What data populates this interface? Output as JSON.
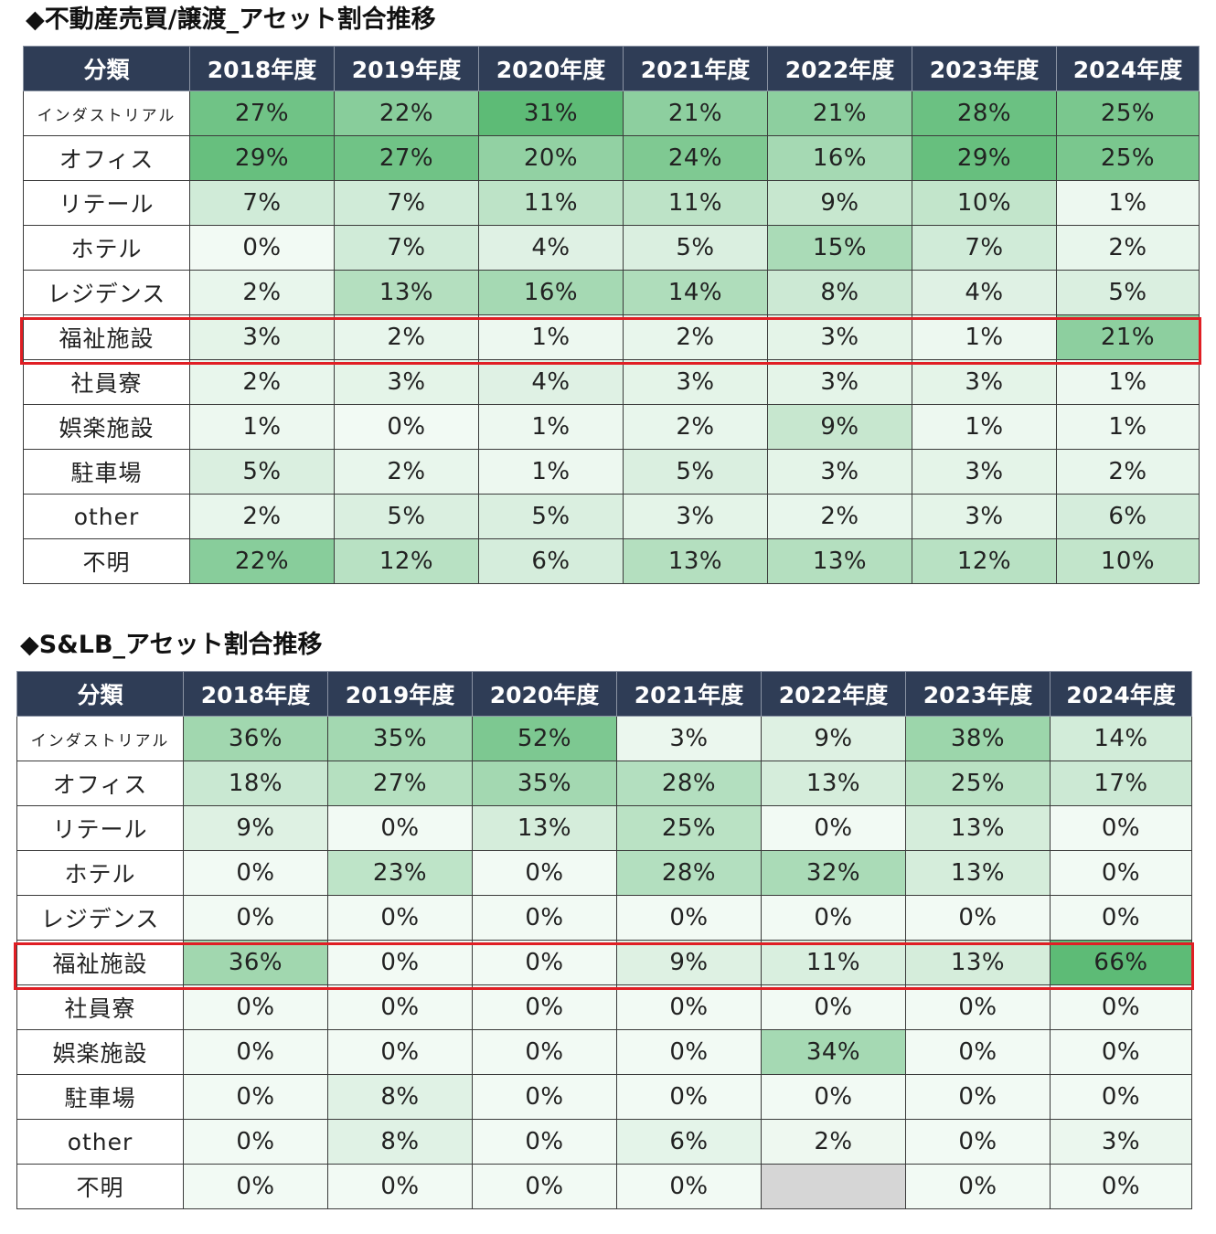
{
  "colors": {
    "header_bg": "#2f3d56",
    "header_text": "#ffffff",
    "highlight_border": "#e01e24",
    "heat_max": "#5dbb76",
    "heat_min": "#ffffff",
    "missing_cell": "#d6d6d6"
  },
  "tables": [
    {
      "title": "◆不動産売買/譲渡_アセット割合推移",
      "headers": [
        "分類",
        "2018年度",
        "2019年度",
        "2020年度",
        "2021年度",
        "2022年度",
        "2023年度",
        "2024年度"
      ],
      "highlight_row": "福祉施設",
      "rows": [
        {
          "label": "インダストリアル",
          "values": [
            "27%",
            "22%",
            "31%",
            "21%",
            "21%",
            "28%",
            "25%"
          ]
        },
        {
          "label": "オフィス",
          "values": [
            "29%",
            "27%",
            "20%",
            "24%",
            "16%",
            "29%",
            "25%"
          ]
        },
        {
          "label": "リテール",
          "values": [
            "7%",
            "7%",
            "11%",
            "11%",
            "9%",
            "10%",
            "1%"
          ]
        },
        {
          "label": "ホテル",
          "values": [
            "0%",
            "7%",
            "4%",
            "5%",
            "15%",
            "7%",
            "2%"
          ]
        },
        {
          "label": "レジデンス",
          "values": [
            "2%",
            "13%",
            "16%",
            "14%",
            "8%",
            "4%",
            "5%"
          ]
        },
        {
          "label": "福祉施設",
          "values": [
            "3%",
            "2%",
            "1%",
            "2%",
            "3%",
            "1%",
            "21%"
          ]
        },
        {
          "label": "社員寮",
          "values": [
            "2%",
            "3%",
            "4%",
            "3%",
            "3%",
            "3%",
            "1%"
          ]
        },
        {
          "label": "娯楽施設",
          "values": [
            "1%",
            "0%",
            "1%",
            "2%",
            "9%",
            "1%",
            "1%"
          ]
        },
        {
          "label": "駐車場",
          "values": [
            "5%",
            "2%",
            "1%",
            "5%",
            "3%",
            "3%",
            "2%"
          ]
        },
        {
          "label": "other",
          "values": [
            "2%",
            "5%",
            "5%",
            "3%",
            "2%",
            "3%",
            "6%"
          ]
        },
        {
          "label": "不明",
          "values": [
            "22%",
            "12%",
            "6%",
            "13%",
            "13%",
            "12%",
            "10%"
          ]
        }
      ]
    },
    {
      "title": "◆S&LB_アセット割合推移",
      "headers": [
        "分類",
        "2018年度",
        "2019年度",
        "2020年度",
        "2021年度",
        "2022年度",
        "2023年度",
        "2024年度"
      ],
      "highlight_row": "福祉施設",
      "rows": [
        {
          "label": "インダストリアル",
          "values": [
            "36%",
            "35%",
            "52%",
            "3%",
            "9%",
            "38%",
            "14%"
          ]
        },
        {
          "label": "オフィス",
          "values": [
            "18%",
            "27%",
            "35%",
            "28%",
            "13%",
            "25%",
            "17%"
          ]
        },
        {
          "label": "リテール",
          "values": [
            "9%",
            "0%",
            "13%",
            "25%",
            "0%",
            "13%",
            "0%"
          ]
        },
        {
          "label": "ホテル",
          "values": [
            "0%",
            "23%",
            "0%",
            "28%",
            "32%",
            "13%",
            "0%"
          ]
        },
        {
          "label": "レジデンス",
          "values": [
            "0%",
            "0%",
            "0%",
            "0%",
            "0%",
            "0%",
            "0%"
          ]
        },
        {
          "label": "福祉施設",
          "values": [
            "36%",
            "0%",
            "0%",
            "9%",
            "11%",
            "13%",
            "66%"
          ]
        },
        {
          "label": "社員寮",
          "values": [
            "0%",
            "0%",
            "0%",
            "0%",
            "0%",
            "0%",
            "0%"
          ]
        },
        {
          "label": "娯楽施設",
          "values": [
            "0%",
            "0%",
            "0%",
            "0%",
            "34%",
            "0%",
            "0%"
          ]
        },
        {
          "label": "駐車場",
          "values": [
            "0%",
            "8%",
            "0%",
            "0%",
            "0%",
            "0%",
            "0%"
          ]
        },
        {
          "label": "other",
          "values": [
            "0%",
            "8%",
            "0%",
            "6%",
            "2%",
            "0%",
            "3%"
          ]
        },
        {
          "label": "不明",
          "values": [
            "0%",
            "0%",
            "0%",
            "0%",
            null,
            "0%",
            "0%"
          ]
        }
      ]
    }
  ]
}
